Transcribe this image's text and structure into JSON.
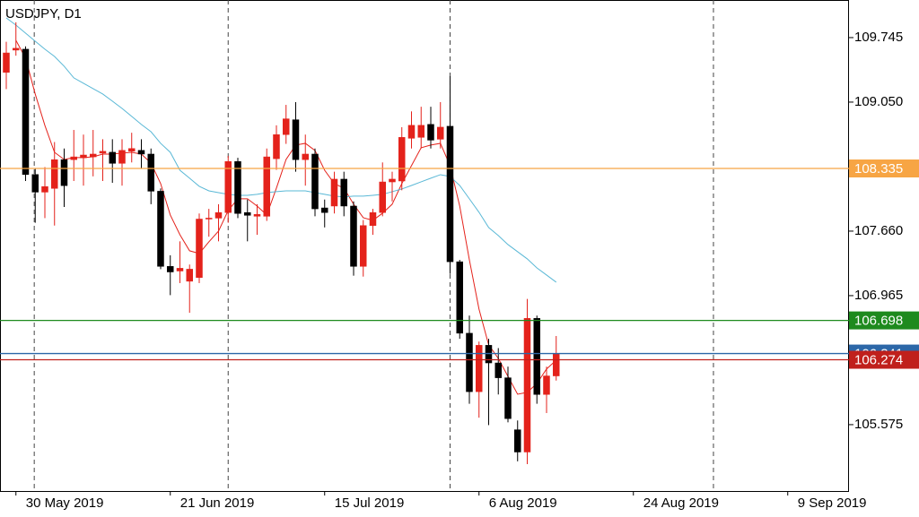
{
  "chart_data": {
    "type": "candlestick",
    "title": "USDJPY, D1",
    "xlim": [
      -0.65,
      87.35
    ],
    "ylim": [
      104.86,
      110.15
    ],
    "yticks": [
      109.745,
      {
        "value": 109.05,
        "label": "109.050"
      },
      {
        "value": 107.66,
        "label": "107.660"
      },
      106.965,
      105.575
    ],
    "xticks": [
      {
        "value": 1,
        "label": "30 May 2019"
      },
      {
        "value": 17,
        "label": "21 Jun 2019"
      },
      {
        "value": 33,
        "label": "15 Jul 2019"
      },
      {
        "value": 49,
        "label": "6 Aug 2019"
      },
      {
        "value": 65,
        "label": "24 Aug 2019"
      },
      {
        "value": 81,
        "label": "9 Sep 2019"
      }
    ],
    "separators": [
      2.9,
      23,
      46,
      73.3
    ],
    "up_color": "#e4221b",
    "down_color": "#000000",
    "open": [
      109.37,
      109.61,
      109.62,
      108.27,
      108.08,
      108.12,
      108.43,
      108.43,
      108.45,
      108.46,
      108.5,
      108.51,
      108.39,
      108.52,
      108.53,
      108.49,
      108.09,
      107.28,
      107.23,
      107.12,
      107.16,
      107.79,
      107.8,
      107.86,
      108.41,
      107.86,
      107.82,
      107.82,
      108.44,
      108.7,
      108.86,
      108.43,
      108.49,
      107.91,
      107.93,
      108.22,
      107.93,
      107.28,
      107.72,
      107.86,
      108.19,
      108.2,
      108.66,
      108.67,
      108.81,
      108.65,
      108.79,
      107.33,
      106.56,
      105.93,
      106.43,
      106.24,
      106.08,
      105.52,
      105.28,
      106.72,
      105.9,
      106.1
    ],
    "high": [
      109.7,
      109.91,
      109.65,
      108.33,
      108.35,
      108.62,
      108.55,
      108.75,
      108.7,
      108.75,
      108.65,
      108.65,
      108.65,
      108.72,
      108.65,
      108.55,
      108.12,
      107.4,
      107.55,
      107.3,
      107.85,
      107.9,
      107.95,
      108.47,
      108.45,
      108.0,
      107.95,
      108.55,
      108.8,
      109.02,
      109.05,
      108.7,
      108.55,
      108.0,
      108.3,
      108.3,
      107.98,
      107.78,
      107.9,
      108.4,
      108.3,
      108.78,
      108.95,
      109.0,
      109.0,
      109.05,
      109.33,
      107.35,
      106.75,
      106.47,
      106.5,
      106.4,
      106.2,
      105.62,
      106.93,
      106.75,
      106.2,
      106.53
    ],
    "low": [
      109.19,
      109.55,
      108.2,
      107.75,
      107.8,
      107.72,
      107.92,
      108.2,
      108.15,
      108.25,
      108.2,
      108.18,
      108.15,
      108.4,
      108.33,
      107.95,
      107.25,
      106.97,
      107.1,
      106.78,
      107.1,
      107.6,
      107.55,
      107.75,
      107.8,
      107.55,
      107.62,
      107.77,
      108.32,
      108.6,
      108.3,
      108.15,
      107.82,
      107.7,
      107.85,
      107.82,
      107.18,
      107.17,
      107.62,
      107.82,
      107.98,
      108.1,
      108.55,
      108.55,
      108.55,
      108.55,
      107.2,
      106.5,
      105.8,
      105.65,
      105.57,
      105.9,
      105.6,
      105.18,
      105.15,
      105.8,
      105.7,
      106.05
    ],
    "close": [
      109.58,
      109.63,
      108.27,
      108.08,
      108.14,
      108.43,
      108.15,
      108.46,
      108.48,
      108.49,
      108.52,
      108.39,
      108.53,
      108.55,
      108.49,
      108.09,
      107.28,
      107.22,
      107.26,
      107.25,
      107.79,
      107.8,
      107.86,
      108.41,
      107.85,
      107.83,
      107.84,
      108.46,
      108.7,
      108.87,
      108.43,
      108.49,
      107.9,
      107.86,
      108.22,
      107.93,
      107.28,
      107.72,
      107.86,
      108.19,
      108.22,
      108.67,
      108.8,
      108.8,
      108.64,
      108.78,
      107.33,
      106.56,
      105.93,
      106.43,
      106.24,
      106.08,
      105.64,
      105.28,
      106.72,
      105.9,
      106.1,
      106.34
    ],
    "series": [
      {
        "color": "#e4221b",
        "values": [
          null,
          109.716,
          109.523,
          109.137,
          108.799,
          108.509,
          108.432,
          108.452,
          108.452,
          108.461,
          108.49,
          108.49,
          108.5,
          108.509,
          108.49,
          108.394,
          108.172,
          107.834,
          107.621,
          107.448,
          107.419,
          107.544,
          107.66,
          107.882,
          108.008,
          108.008,
          107.93,
          107.834,
          108.123,
          108.432,
          108.587,
          108.606,
          108.529,
          108.316,
          108.172,
          108.123,
          107.95,
          107.805,
          107.776,
          107.853,
          107.95,
          108.172,
          108.365,
          108.558,
          108.587,
          108.606,
          108.365,
          107.93,
          107.351,
          106.82,
          106.434,
          106.289,
          106.096,
          105.903,
          105.923,
          106.019,
          106.174,
          106.27
        ]
      },
      {
        "color": "#5ab8d6",
        "values": [
          109.957,
          109.88,
          109.793,
          109.706,
          109.62,
          109.542,
          109.436,
          109.311,
          109.253,
          109.195,
          109.137,
          109.06,
          108.982,
          108.896,
          108.809,
          108.731,
          108.606,
          108.509,
          108.316,
          108.23,
          108.143,
          108.094,
          108.075,
          108.056,
          108.046,
          108.046,
          108.056,
          108.075,
          108.085,
          108.094,
          108.094,
          108.094,
          108.075,
          108.056,
          108.037,
          108.027,
          108.037,
          108.037,
          108.046,
          108.056,
          108.085,
          108.114,
          108.152,
          108.191,
          108.23,
          108.268,
          108.249,
          108.152,
          108.008,
          107.863,
          107.699,
          107.612,
          107.515,
          107.438,
          107.361,
          107.264,
          107.187,
          107.11
        ]
      }
    ],
    "hlines": [
      {
        "value": 108.335,
        "color": "#f7a544"
      },
      {
        "value": 106.341,
        "color": "#2c67a8"
      },
      {
        "value": 106.698,
        "color": "#1e8a1e"
      },
      {
        "value": 106.274,
        "color": "#c0201c"
      }
    ]
  }
}
